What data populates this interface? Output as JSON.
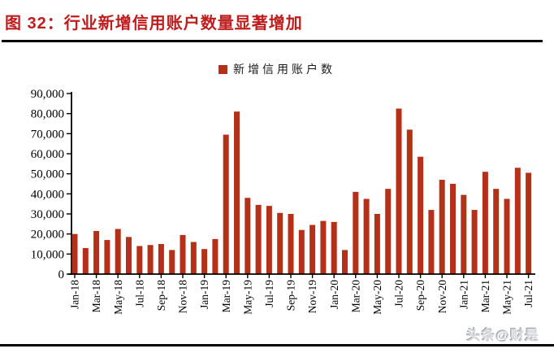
{
  "header": {
    "title": "图  32：行业新增信用账户数量显著增加"
  },
  "legend": {
    "label": "新增信用账户数"
  },
  "watermark": {
    "text": "头条@财是"
  },
  "colors": {
    "bar": "#B43019",
    "title": "#BF1D1D",
    "axis": "#000000",
    "legend_marker": "#B43019"
  },
  "chart_data": {
    "type": "bar",
    "title": "",
    "xlabel": "",
    "ylabel": "",
    "legend_entries": [
      "新增信用账户数"
    ],
    "legend_position": "top-center",
    "grid": false,
    "ylim": [
      0,
      90000
    ],
    "y_ticks": [
      0,
      10000,
      20000,
      30000,
      40000,
      50000,
      60000,
      70000,
      80000,
      90000
    ],
    "y_tick_labels": [
      "0",
      "10,000",
      "20,000",
      "30,000",
      "40,000",
      "50,000",
      "60,000",
      "70,000",
      "80,000",
      "90,000"
    ],
    "x_label_every": 2,
    "categories": [
      "Jan-18",
      "Feb-18",
      "Mar-18",
      "Apr-18",
      "May-18",
      "Jun-18",
      "Jul-18",
      "Aug-18",
      "Sep-18",
      "Oct-18",
      "Nov-18",
      "Dec-18",
      "Jan-19",
      "Feb-19",
      "Mar-19",
      "Apr-19",
      "May-19",
      "Jun-19",
      "Jul-19",
      "Aug-19",
      "Sep-19",
      "Oct-19",
      "Nov-19",
      "Dec-19",
      "Jan-20",
      "Feb-20",
      "Mar-20",
      "Apr-20",
      "May-20",
      "Jun-20",
      "Jul-20",
      "Aug-20",
      "Sep-20",
      "Oct-20",
      "Nov-20",
      "Dec-20",
      "Jan-21",
      "Feb-21",
      "Mar-21",
      "Apr-21",
      "May-21",
      "Jun-21",
      "Jul-21"
    ],
    "values": [
      20000,
      13000,
      21500,
      17000,
      22500,
      18500,
      14000,
      14500,
      15000,
      12000,
      19500,
      16000,
      12500,
      17500,
      69500,
      81000,
      38000,
      34500,
      34000,
      30500,
      30000,
      22000,
      24500,
      26500,
      26000,
      12000,
      41000,
      37500,
      30000,
      42500,
      82500,
      72000,
      58500,
      32000,
      47000,
      45000,
      39500,
      32000,
      51000,
      42500,
      37500,
      53000,
      50500
    ]
  }
}
